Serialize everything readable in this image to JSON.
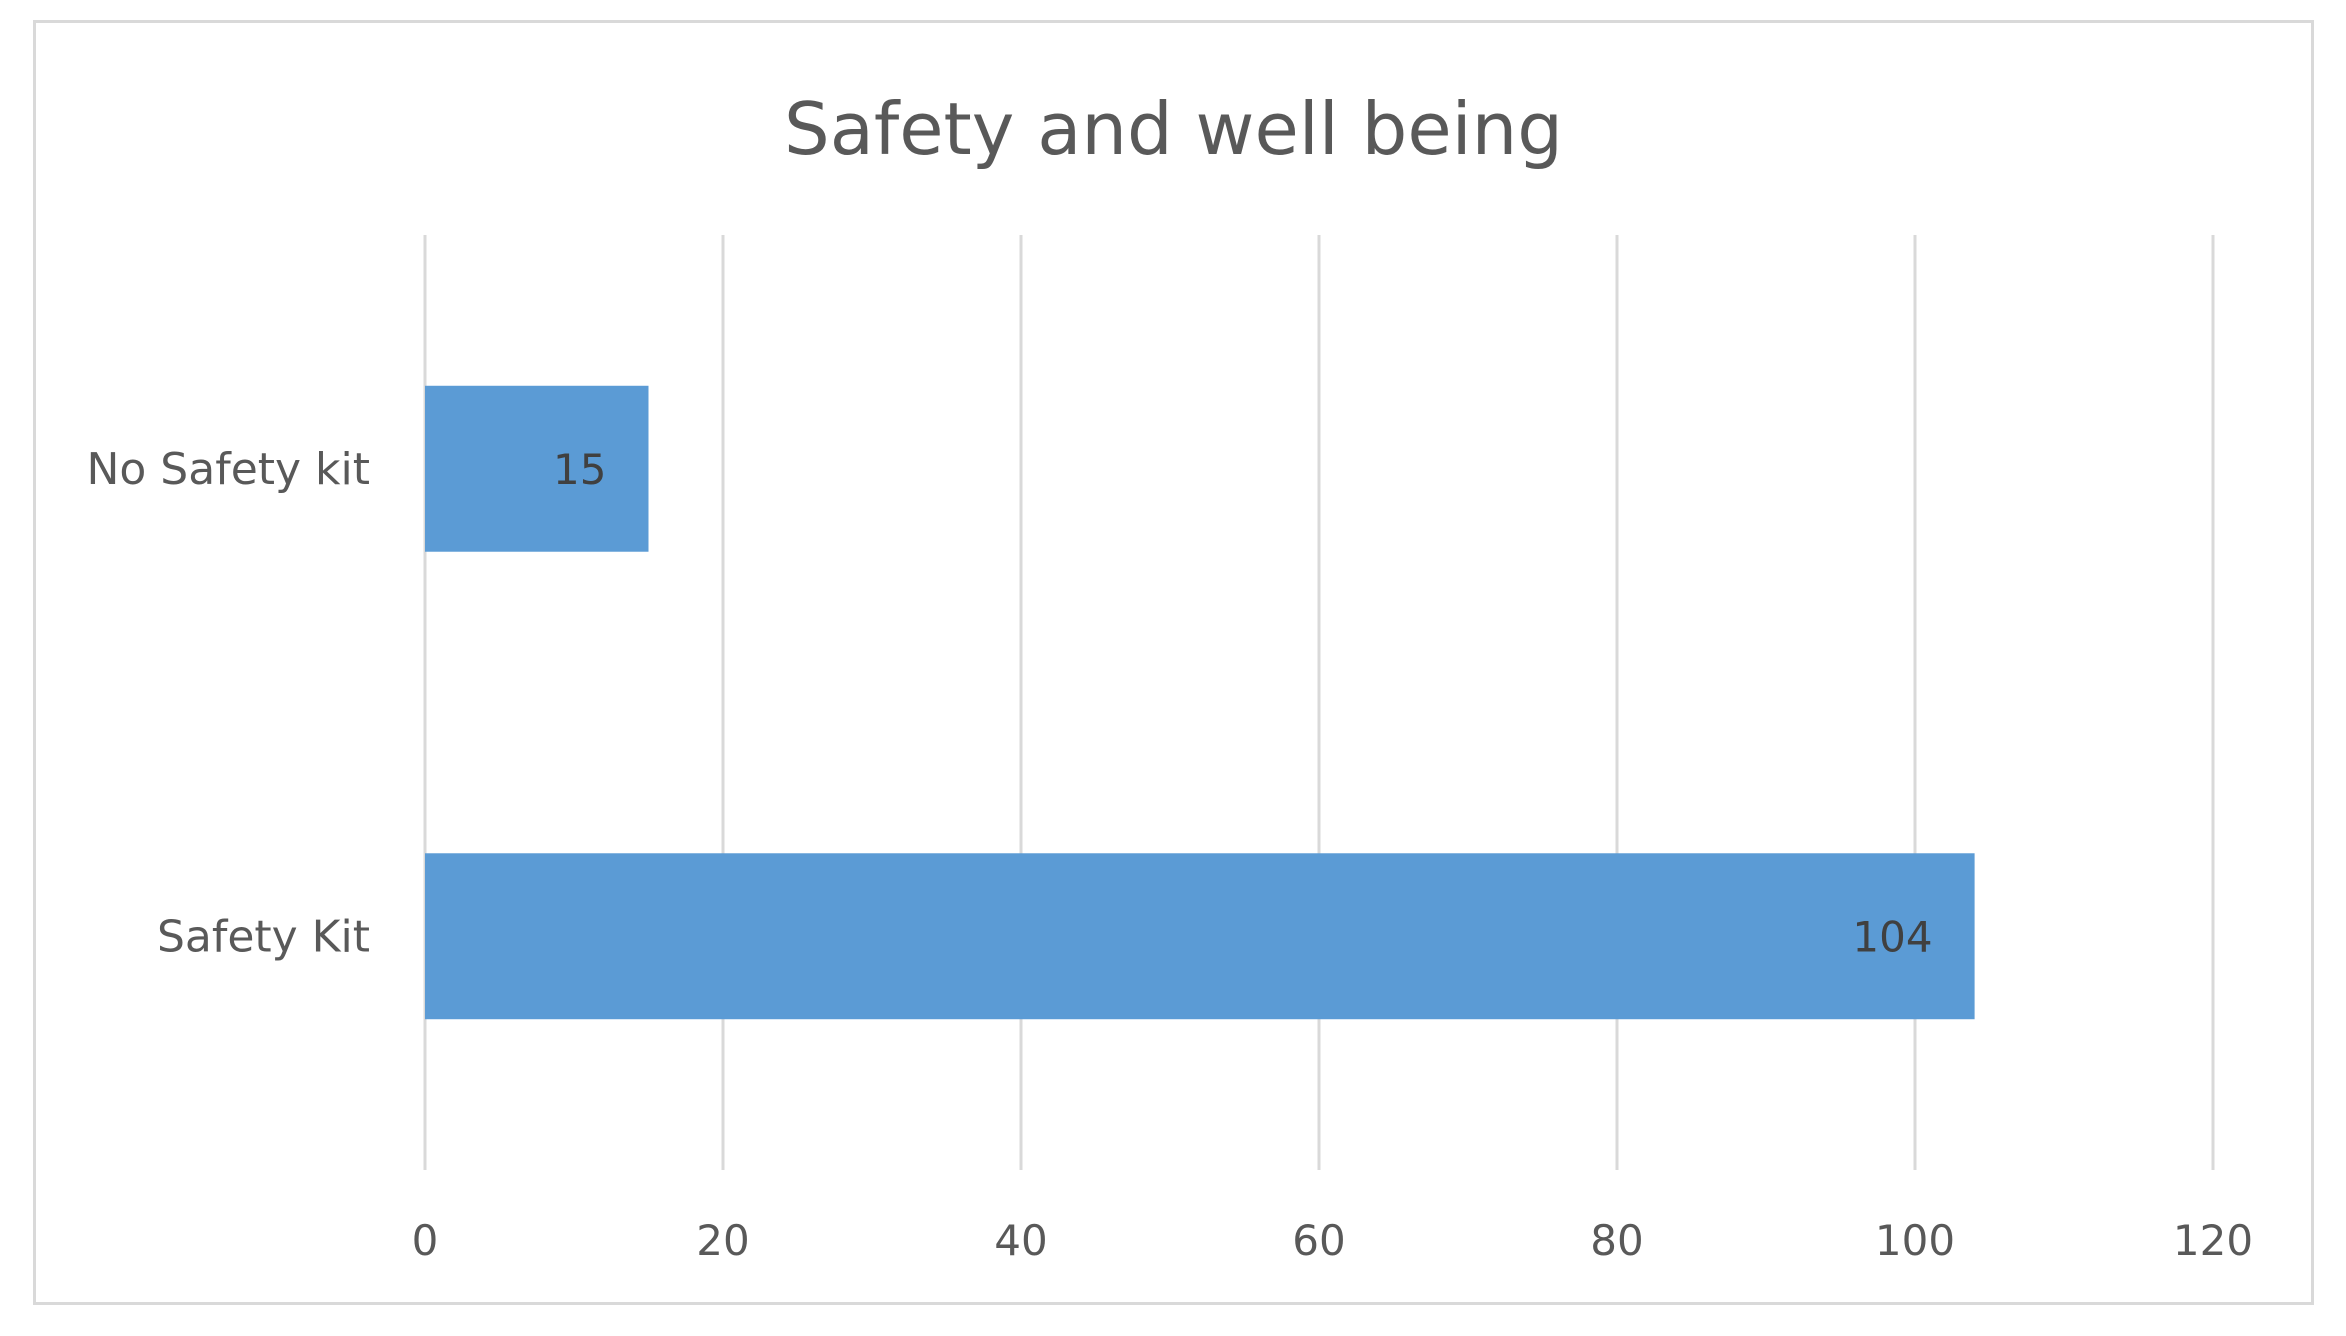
{
  "chart_data": {
    "type": "bar",
    "orientation": "horizontal",
    "title": "Safety and well being",
    "categories": [
      "No Safety kit",
      "Safety Kit"
    ],
    "values": [
      15,
      104
    ],
    "xlabel": "",
    "ylabel": "",
    "xlim": [
      0,
      120
    ],
    "x_ticks": [
      0,
      20,
      40,
      60,
      80,
      100,
      120
    ],
    "data_labels": [
      "15",
      "104"
    ],
    "grid": true,
    "bar_color": "#5b9bd5",
    "grid_color": "#d9d9d9",
    "text_color": "#595959"
  }
}
